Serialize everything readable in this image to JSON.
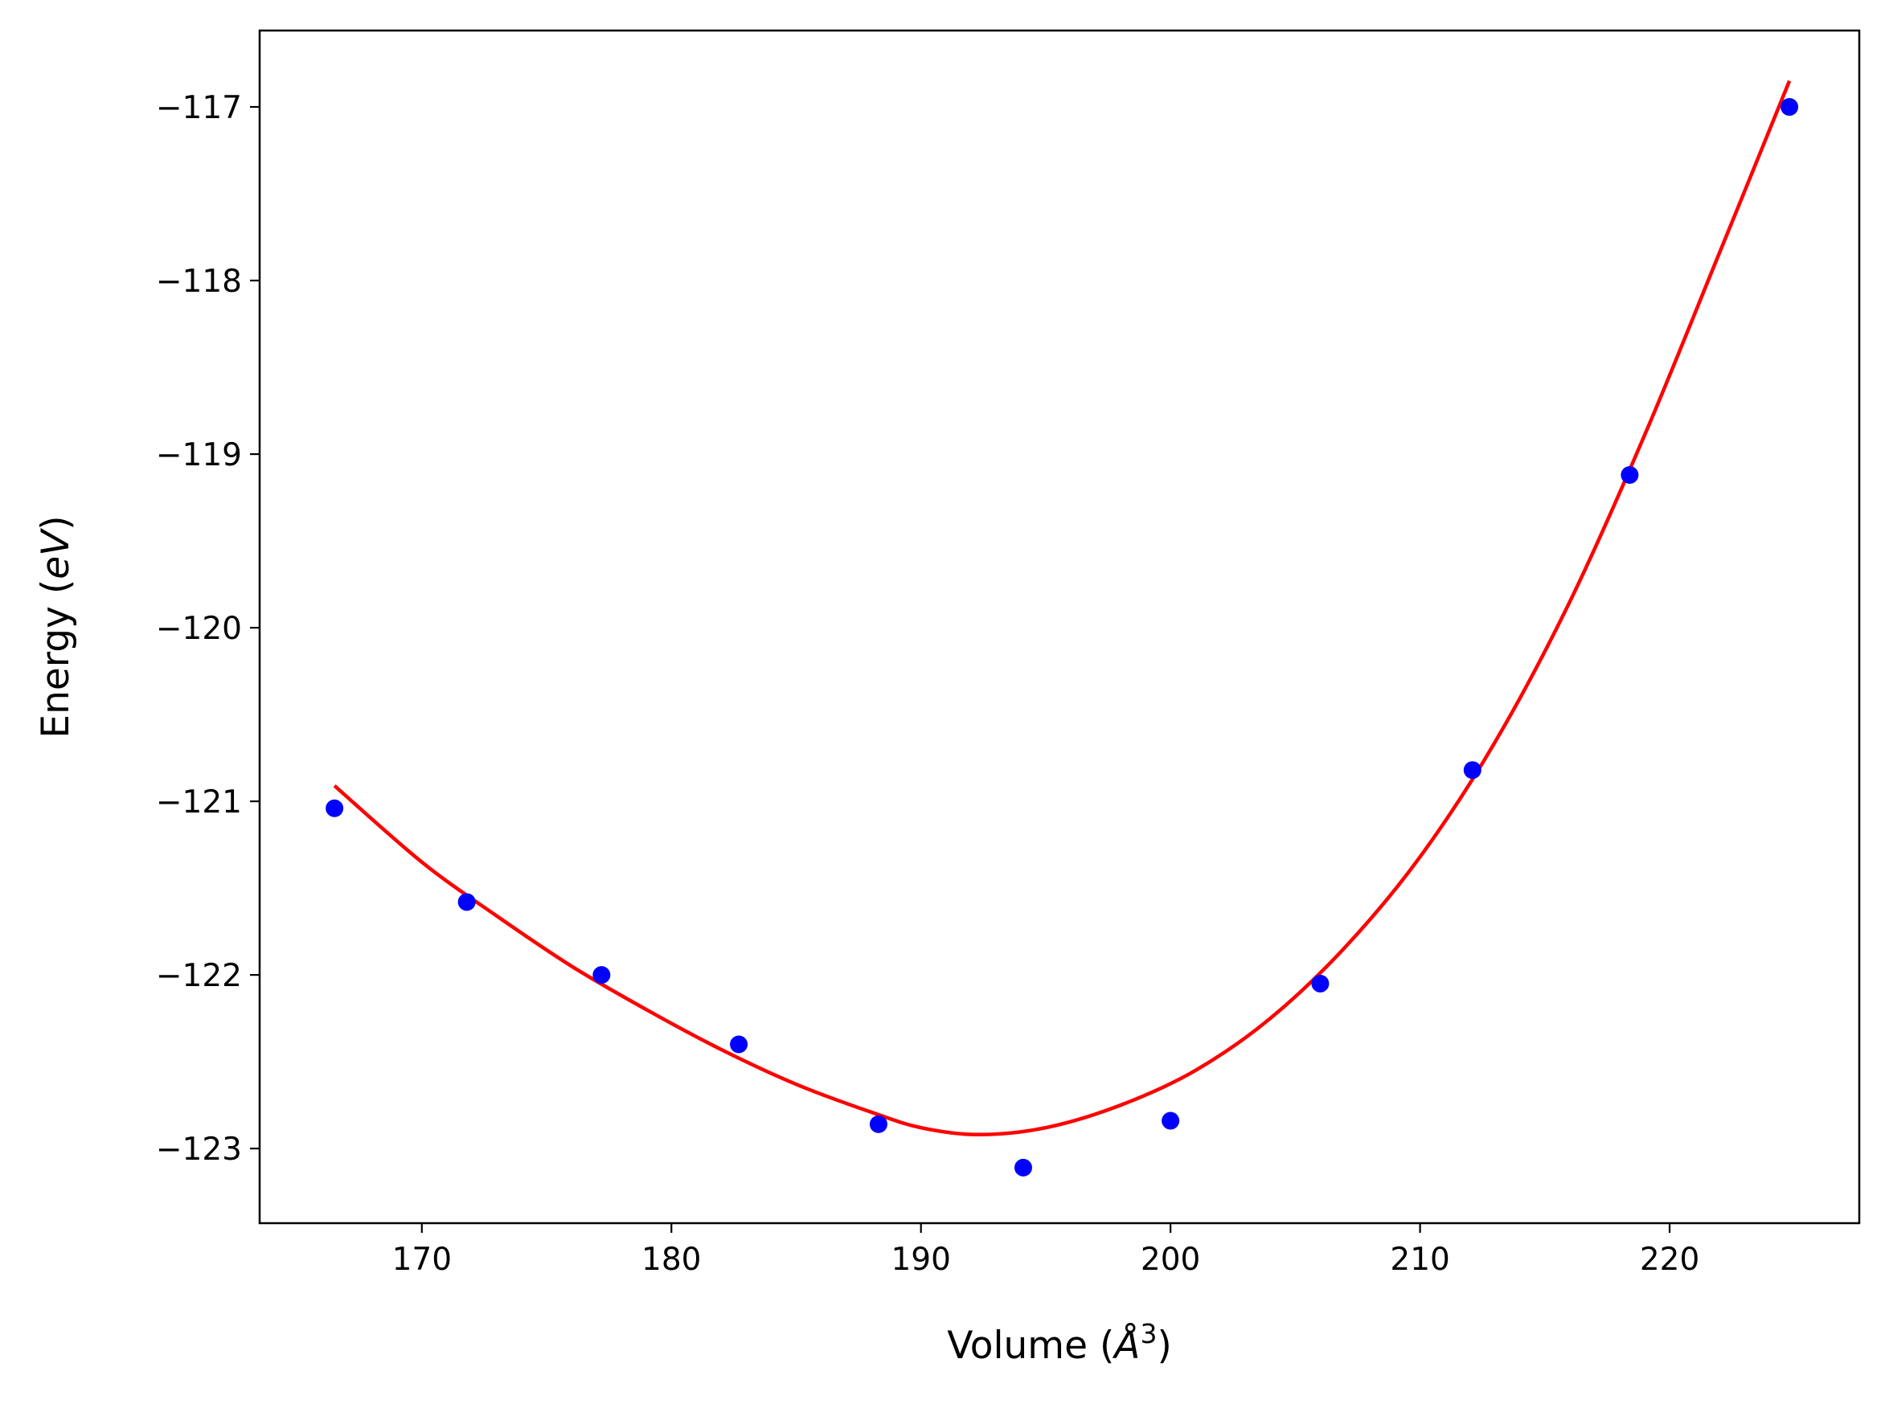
{
  "chart_data": {
    "type": "scatter",
    "title": "",
    "xlabel": {
      "prefix": "Volume (",
      "math": "Å",
      "sup": "3",
      "suffix": ")"
    },
    "ylabel": {
      "prefix": "Energy (",
      "math": "eV",
      "suffix": ")"
    },
    "xlim": [
      163.5,
      227.6
    ],
    "ylim": [
      -123.43,
      -116.56
    ],
    "xticks": [
      170,
      180,
      190,
      200,
      210,
      220
    ],
    "yticks": [
      -117,
      -118,
      -119,
      -120,
      -121,
      -122,
      -123
    ],
    "xtick_labels": [
      "170",
      "180",
      "190",
      "200",
      "210",
      "220"
    ],
    "ytick_labels": [
      "−117",
      "−118",
      "−119",
      "−120",
      "−121",
      "−122",
      "−123"
    ],
    "grid": false,
    "series": [
      {
        "kind": "points",
        "color": "#0000ff",
        "x": [
          166.5,
          171.8,
          177.2,
          182.7,
          188.3,
          194.1,
          200.0,
          206.0,
          212.1,
          218.4,
          224.8
        ],
        "y": [
          -121.04,
          -121.58,
          -122.0,
          -122.4,
          -122.86,
          -123.11,
          -122.84,
          -122.05,
          -120.82,
          -119.12,
          -117.0
        ]
      },
      {
        "kind": "fit",
        "color": "#ff0000",
        "x": [
          166.5,
          170.0,
          173.0,
          176.0,
          179.0,
          182.0,
          185.0,
          188.0,
          190.0,
          192.3,
          195.0,
          198.0,
          201.0,
          204.0,
          207.0,
          210.0,
          213.0,
          216.0,
          219.0,
          222.0,
          224.8
        ],
        "y": [
          -120.91,
          -121.35,
          -121.66,
          -121.95,
          -122.2,
          -122.43,
          -122.63,
          -122.79,
          -122.88,
          -122.92,
          -122.88,
          -122.75,
          -122.55,
          -122.25,
          -121.84,
          -121.32,
          -120.66,
          -119.85,
          -118.89,
          -117.84,
          -116.85
        ]
      }
    ]
  }
}
